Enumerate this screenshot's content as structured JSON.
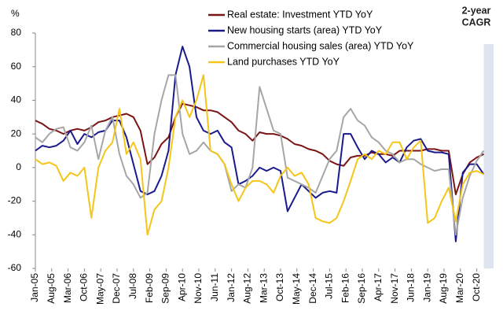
{
  "chart_data": {
    "type": "line",
    "y_label": "%",
    "annotation": [
      "2-year",
      "CAGR"
    ],
    "shaded_region": [
      2021,
      2021.35
    ],
    "xlim": [
      2005,
      2021.35
    ],
    "ylim": [
      -60,
      80
    ],
    "yticks": [
      -60,
      -40,
      -20,
      0,
      20,
      40,
      60,
      80
    ],
    "xticks": [
      {
        "value": 2005,
        "label": "Jan-05"
      },
      {
        "value": 2005.583,
        "label": "Aug-05"
      },
      {
        "value": 2006.167,
        "label": "Mar-06"
      },
      {
        "value": 2006.75,
        "label": "Oct-06"
      },
      {
        "value": 2007.333,
        "label": "May-07"
      },
      {
        "value": 2007.917,
        "label": "Dec-07"
      },
      {
        "value": 2008.5,
        "label": "Jul-08"
      },
      {
        "value": 2009.083,
        "label": "Feb-09"
      },
      {
        "value": 2009.667,
        "label": "Sep-09"
      },
      {
        "value": 2010.25,
        "label": "Apr-10"
      },
      {
        "value": 2010.833,
        "label": "Nov-10"
      },
      {
        "value": 2011.417,
        "label": "Jun-11"
      },
      {
        "value": 2012,
        "label": "Jan-12"
      },
      {
        "value": 2012.583,
        "label": "Aug-12"
      },
      {
        "value": 2013.167,
        "label": "Mar-13"
      },
      {
        "value": 2013.75,
        "label": "Oct-13"
      },
      {
        "value": 2014.333,
        "label": "May-14"
      },
      {
        "value": 2014.917,
        "label": "Dec-14"
      },
      {
        "value": 2015.5,
        "label": "Jul-15"
      },
      {
        "value": 2016.083,
        "label": "Feb-16"
      },
      {
        "value": 2016.667,
        "label": "Sep-16"
      },
      {
        "value": 2017.25,
        "label": "Apr-17"
      },
      {
        "value": 2017.833,
        "label": "Nov-17"
      },
      {
        "value": 2018.417,
        "label": "Jun-18"
      },
      {
        "value": 2019,
        "label": "Jan-19"
      },
      {
        "value": 2019.583,
        "label": "Aug-19"
      },
      {
        "value": 2020.167,
        "label": "Mar-20"
      },
      {
        "value": 2020.75,
        "label": "Oct-20"
      }
    ],
    "x": [
      2005,
      2005.25,
      2005.5,
      2005.75,
      2006,
      2006.25,
      2006.5,
      2006.75,
      2007,
      2007.25,
      2007.5,
      2007.75,
      2008,
      2008.25,
      2008.5,
      2008.75,
      2009,
      2009.25,
      2009.5,
      2009.75,
      2010,
      2010.25,
      2010.5,
      2010.75,
      2011,
      2011.25,
      2011.5,
      2011.75,
      2012,
      2012.25,
      2012.5,
      2012.75,
      2013,
      2013.25,
      2013.5,
      2013.75,
      2014,
      2014.25,
      2014.5,
      2014.75,
      2015,
      2015.25,
      2015.5,
      2015.75,
      2016,
      2016.25,
      2016.5,
      2016.75,
      2017,
      2017.25,
      2017.5,
      2017.75,
      2018,
      2018.25,
      2018.5,
      2018.75,
      2019,
      2019.25,
      2019.5,
      2019.75,
      2020,
      2020.25,
      2020.5,
      2020.75,
      2021
    ],
    "series": [
      {
        "name": "Real estate: Investment YTD YoY",
        "color": "#7b1414",
        "values": [
          28,
          26,
          23,
          22,
          20,
          22,
          23,
          22,
          24,
          27,
          28,
          30,
          31,
          32,
          30,
          22,
          2,
          6,
          14,
          18,
          30,
          38,
          37,
          36,
          34,
          34,
          33,
          30,
          27,
          22,
          20,
          16,
          21,
          20,
          20,
          19,
          17,
          14,
          13,
          11,
          10,
          8,
          4,
          2,
          1,
          6,
          7,
          7,
          9,
          8,
          8,
          7,
          10,
          10,
          10,
          10,
          11,
          11,
          10,
          10,
          -16,
          -4,
          3,
          6,
          8
        ]
      },
      {
        "name": "New housing starts (area) YTD YoY",
        "color": "#1a1a8c",
        "values": [
          10,
          13,
          12,
          13,
          16,
          22,
          14,
          20,
          18,
          21,
          22,
          28,
          28,
          18,
          2,
          -14,
          -16,
          -14,
          -5,
          10,
          55,
          72,
          60,
          30,
          22,
          20,
          22,
          15,
          12,
          -10,
          -8,
          -5,
          0,
          -2,
          0,
          -2,
          -26,
          -18,
          -10,
          -14,
          -18,
          -15,
          -14,
          -15,
          20,
          20,
          12,
          5,
          10,
          8,
          3,
          6,
          3,
          12,
          16,
          17,
          10,
          9,
          9,
          8,
          -44,
          -3,
          2,
          2,
          -4
        ]
      },
      {
        "name": "Commercial housing sales (area) YTD YoY",
        "color": "#a6a6a6",
        "values": [
          18,
          15,
          20,
          23,
          24,
          12,
          10,
          15,
          25,
          5,
          22,
          30,
          8,
          -5,
          -10,
          -18,
          -15,
          20,
          40,
          55,
          55,
          20,
          8,
          10,
          15,
          10,
          8,
          2,
          -14,
          -10,
          -12,
          0,
          48,
          35,
          22,
          20,
          -6,
          -8,
          -10,
          -12,
          -15,
          -5,
          5,
          10,
          30,
          35,
          28,
          25,
          18,
          15,
          10,
          8,
          3,
          5,
          5,
          2,
          0,
          -2,
          -1,
          -1,
          -40,
          -18,
          -5,
          4,
          10
        ]
      },
      {
        "name": "Land purchases YTD YoY",
        "color": "#f5c518",
        "values": [
          5,
          2,
          3,
          1,
          -8,
          -3,
          -5,
          0,
          -30,
          0,
          10,
          15,
          35,
          8,
          15,
          5,
          -40,
          -25,
          -20,
          0,
          30,
          40,
          30,
          40,
          55,
          10,
          8,
          2,
          -10,
          -20,
          -12,
          -8,
          -8,
          -10,
          -15,
          -5,
          0,
          -5,
          -3,
          -10,
          -30,
          -32,
          -33,
          -30,
          -20,
          -8,
          5,
          8,
          5,
          10,
          8,
          15,
          15,
          5,
          12,
          16,
          -33,
          -30,
          -20,
          -12,
          -32,
          -10,
          -3,
          -2,
          -4
        ]
      }
    ]
  }
}
